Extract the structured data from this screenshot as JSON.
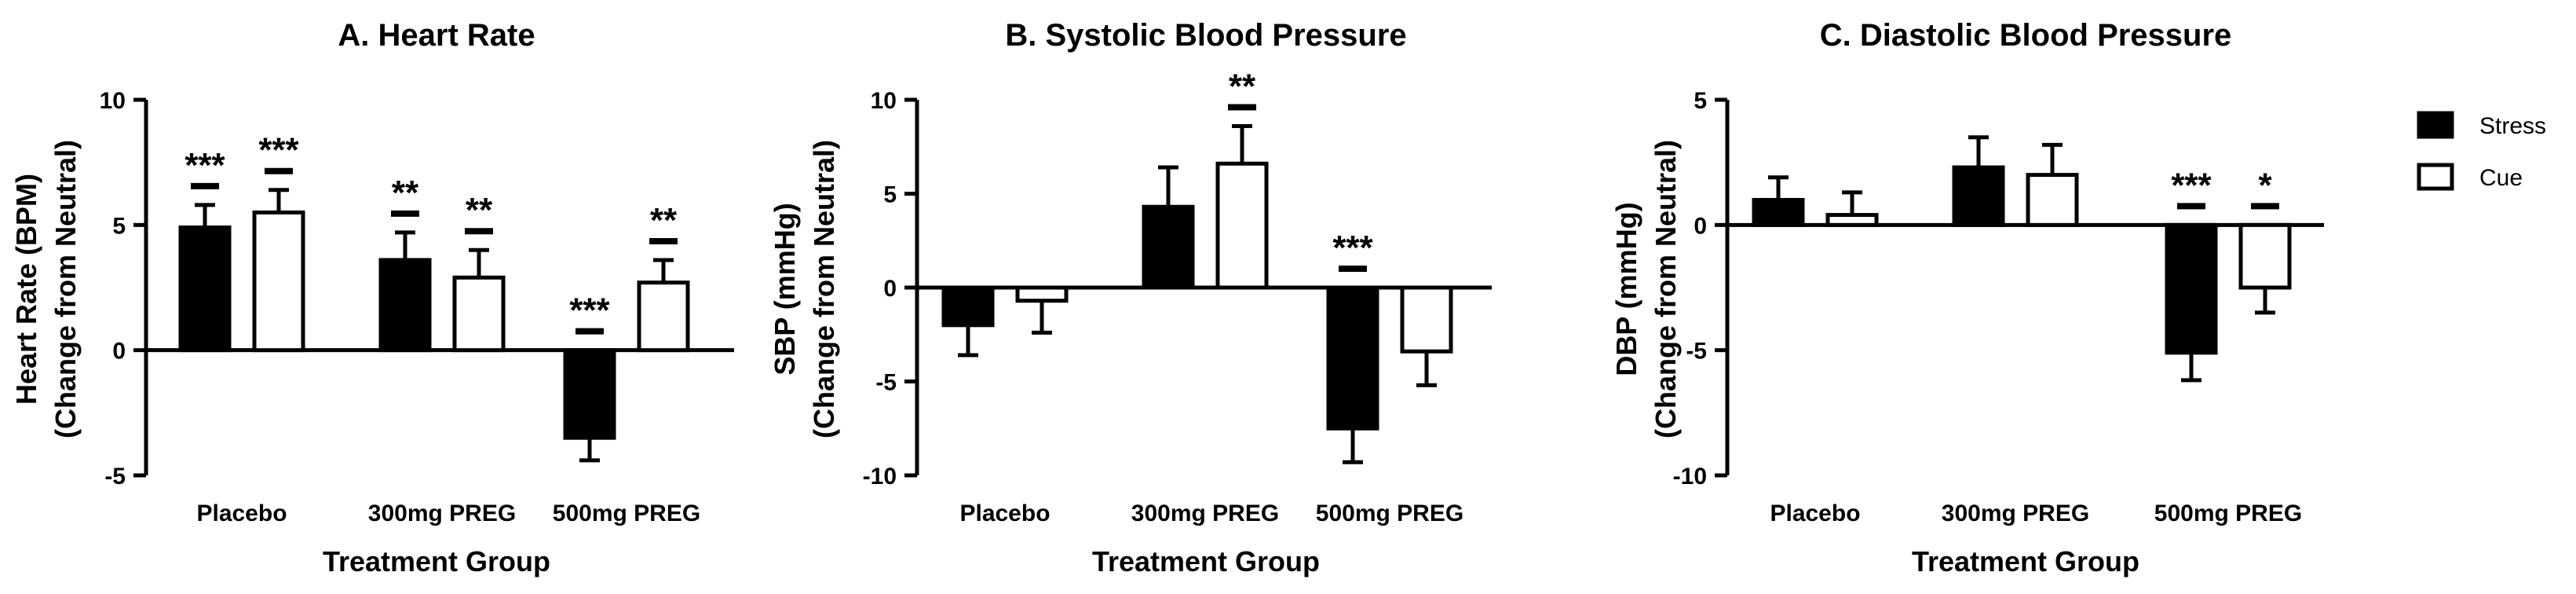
{
  "legend": {
    "stress_label": "Stress",
    "cue_label": "Cue"
  },
  "colors": {
    "stress": "#000000",
    "cue": "#ffffff",
    "stroke": "#000000"
  },
  "chart_data": [
    {
      "type": "bar",
      "title": "A. Heart Rate",
      "ylabel_line1": "Heart Rate (BPM)",
      "ylabel_line2": "(Change from Neutral)",
      "xlabel": "Treatment Group",
      "categories": [
        "Placebo",
        "300mg PREG",
        "500mg PREG"
      ],
      "ylim": [
        -5,
        10
      ],
      "yticks": [
        -5,
        0,
        5,
        10
      ],
      "ytick_labels": [
        "-5",
        "0",
        "5",
        "10"
      ],
      "series": [
        {
          "name": "Stress",
          "values": [
            4.9,
            3.6,
            -3.5
          ],
          "errors": [
            0.9,
            1.1,
            0.9
          ],
          "significance": [
            "***",
            "**",
            "***"
          ]
        },
        {
          "name": "Cue",
          "values": [
            5.5,
            2.9,
            2.7
          ],
          "errors": [
            0.9,
            1.1,
            0.9
          ],
          "significance": [
            "***",
            "**",
            "**"
          ]
        }
      ]
    },
    {
      "type": "bar",
      "title": "B. Systolic Blood Pressure",
      "ylabel_line1": "SBP (mmHg)",
      "ylabel_line2": "(Change from Neutral)",
      "xlabel": "Treatment Group",
      "categories": [
        "Placebo",
        "300mg PREG",
        "500mg PREG"
      ],
      "ylim": [
        -10,
        10
      ],
      "yticks": [
        -10,
        -5,
        0,
        5,
        10
      ],
      "ytick_labels": [
        "-10",
        "-5",
        "0",
        "5",
        "10"
      ],
      "series": [
        {
          "name": "Stress",
          "values": [
            -2.0,
            4.3,
            -7.5
          ],
          "errors": [
            1.6,
            2.1,
            1.8
          ],
          "significance": [
            "",
            "",
            "***"
          ]
        },
        {
          "name": "Cue",
          "values": [
            -0.7,
            6.6,
            -3.4
          ],
          "errors": [
            1.7,
            2.0,
            1.8
          ],
          "significance": [
            "",
            "**",
            ""
          ]
        }
      ]
    },
    {
      "type": "bar",
      "title": "C. Diastolic Blood Pressure",
      "ylabel_line1": "DBP (mmHg)",
      "ylabel_line2": "(Change from Neutral)",
      "xlabel": "Treatment Group",
      "categories": [
        "Placebo",
        "300mg PREG",
        "500mg PREG"
      ],
      "ylim": [
        -10,
        5
      ],
      "yticks": [
        -10,
        -5,
        0,
        5
      ],
      "ytick_labels": [
        "-10",
        "-5",
        "0",
        "5"
      ],
      "series": [
        {
          "name": "Stress",
          "values": [
            1.0,
            2.3,
            -5.1
          ],
          "errors": [
            0.9,
            1.2,
            1.1
          ],
          "significance": [
            "",
            "",
            "***"
          ]
        },
        {
          "name": "Cue",
          "values": [
            0.4,
            2.0,
            -2.5
          ],
          "errors": [
            0.9,
            1.2,
            1.0
          ],
          "significance": [
            "",
            "",
            "*"
          ]
        }
      ]
    }
  ]
}
